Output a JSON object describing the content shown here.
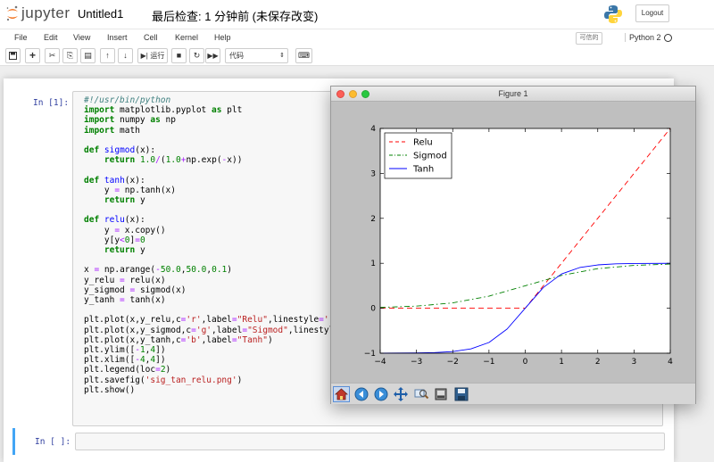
{
  "header": {
    "logo_text": "jupyter",
    "notebook_title": "Untitled1",
    "checkpoint": "最后检查: 1 分钟前  (未保存改变)",
    "logout_label": "Logout"
  },
  "menubar": {
    "items": [
      "File",
      "Edit",
      "View",
      "Insert",
      "Cell",
      "Kernel",
      "Help"
    ],
    "trusted_label": "可信的",
    "kernel_name": "Python 2"
  },
  "toolbar": {
    "run_label": "运行",
    "cell_type": "代码"
  },
  "cells": [
    {
      "prompt": "In [1]:",
      "source": [
        "#!/usr/bin/python",
        "import matplotlib.pyplot as plt",
        "import numpy as np",
        "import math",
        "",
        "def sigmod(x):",
        "    return 1.0/(1.0+np.exp(-x))",
        "",
        "def tanh(x):",
        "    y = np.tanh(x)",
        "    return y",
        "",
        "def relu(x):",
        "    y = x.copy()",
        "    y[y<0]=0",
        "    return y",
        "",
        "x = np.arange(-50.0,50.0,0.1)",
        "y_relu = relu(x)",
        "y_sigmod = sigmod(x)",
        "y_tanh = tanh(x)",
        "",
        "plt.plot(x,y_relu,c='r',label=\"Relu\",linestyle='--')",
        "plt.plot(x,y_sigmod,c='g',label=\"Sigmod\",linestyle='",
        "plt.plot(x,y_tanh,c='b',label=\"Tanh\")",
        "plt.ylim([-1,4])",
        "plt.xlim([-4,4])",
        "plt.legend(loc=2)",
        "plt.savefig('sig_tan_relu.png')",
        "plt.show()"
      ]
    },
    {
      "prompt": "In [ ]:"
    }
  ],
  "figure": {
    "window_title": "Figure 1",
    "toolbar_icons": [
      "home-icon",
      "back-icon",
      "forward-icon",
      "pan-icon",
      "zoom-icon",
      "configure-icon",
      "save-icon"
    ]
  },
  "chart_data": {
    "type": "line",
    "title": "",
    "xlabel": "",
    "ylabel": "",
    "xlim": [
      -4,
      4
    ],
    "ylim": [
      -1,
      4
    ],
    "x_ticks": [
      -4,
      -3,
      -2,
      -1,
      0,
      1,
      2,
      3,
      4
    ],
    "y_ticks": [
      -1,
      0,
      1,
      2,
      3,
      4
    ],
    "legend_location": "upper-left",
    "grid": false,
    "series": [
      {
        "name": "Relu",
        "color": "#ff0000",
        "linestyle": "dashed",
        "x": [
          -4,
          -3,
          -2,
          -1,
          0,
          1,
          2,
          3,
          4
        ],
        "y": [
          0,
          0,
          0,
          0,
          0,
          1,
          2,
          3,
          4
        ]
      },
      {
        "name": "Sigmod",
        "color": "#008000",
        "linestyle": "dashdot",
        "x": [
          -4,
          -3,
          -2,
          -1,
          0,
          1,
          2,
          3,
          4
        ],
        "y": [
          0.018,
          0.047,
          0.119,
          0.269,
          0.5,
          0.731,
          0.881,
          0.953,
          0.982
        ]
      },
      {
        "name": "Tanh",
        "color": "#0000ff",
        "linestyle": "solid",
        "x": [
          -4,
          -3,
          -2.5,
          -2,
          -1.5,
          -1,
          -0.5,
          0,
          0.5,
          1,
          1.5,
          2,
          2.5,
          3,
          4
        ],
        "y": [
          -0.999,
          -0.995,
          -0.987,
          -0.964,
          -0.905,
          -0.762,
          -0.462,
          0,
          0.462,
          0.762,
          0.905,
          0.964,
          0.987,
          0.995,
          0.999
        ]
      }
    ]
  }
}
